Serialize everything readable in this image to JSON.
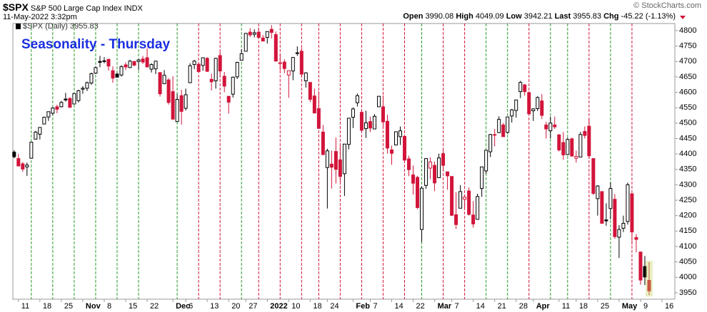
{
  "header": {
    "symbol": "$SPX",
    "name": "S&P 500 Large Cap Index",
    "exchange": "INDX",
    "datetime": "11-May-2022 3:32pm",
    "copyright": "© StockCharts.com",
    "quote": [
      {
        "label": "Open",
        "value": 3990.08
      },
      {
        "label": "High",
        "value": 4049.09
      },
      {
        "label": "Low",
        "value": 3942.21
      },
      {
        "label": "Last",
        "value": 3955.83
      },
      {
        "label": "Chg",
        "value": -45.22,
        "pct": "(-1.13%)"
      }
    ]
  },
  "chart_data": {
    "type": "candlestick",
    "title": "Seasonality - Thursday",
    "legend": "$SPX (Daily) 3955.83",
    "up_color": "#000000",
    "down_color": "#d2143a",
    "up_line_color": "#2a9a2a",
    "down_line_color": "#d2143a",
    "xlim": [
      -0.3,
      154
    ],
    "ylim": [
      3929,
      4823
    ],
    "yticks": [
      3950,
      4000,
      4050,
      4100,
      4150,
      4200,
      4250,
      4300,
      4350,
      4400,
      4450,
      4500,
      4550,
      4600,
      4650,
      4700,
      4750,
      4800
    ],
    "xticks": [
      {
        "value": 1,
        "label": "11"
      },
      {
        "value": 6,
        "label": "18"
      },
      {
        "value": 11,
        "label": "25"
      },
      {
        "value": 16,
        "label": "Nov"
      },
      {
        "value": 21,
        "label": "8"
      },
      {
        "value": 26,
        "label": "15"
      },
      {
        "value": 31,
        "label": "22"
      },
      {
        "value": 37,
        "label": "Dec"
      },
      {
        "value": 40,
        "label": "6"
      },
      {
        "value": 45,
        "label": "13"
      },
      {
        "value": 50,
        "label": "20"
      },
      {
        "value": 54,
        "label": "27"
      },
      {
        "value": 59,
        "label": "2022"
      },
      {
        "value": 64,
        "label": "10"
      },
      {
        "value": 69,
        "label": "18"
      },
      {
        "value": 73,
        "label": "24"
      },
      {
        "value": 79,
        "label": "Feb"
      },
      {
        "value": 83,
        "label": "7"
      },
      {
        "value": 88,
        "label": "14"
      },
      {
        "value": 93,
        "label": "22"
      },
      {
        "value": 98,
        "label": "Mar"
      },
      {
        "value": 102,
        "label": "7"
      },
      {
        "value": 107,
        "label": "14"
      },
      {
        "value": 112,
        "label": "21"
      },
      {
        "value": 117,
        "label": "28"
      },
      {
        "value": 121,
        "label": "Apr"
      },
      {
        "value": 127,
        "label": "11"
      },
      {
        "value": 131,
        "label": "18"
      },
      {
        "value": 136,
        "label": "25"
      },
      {
        "value": 141,
        "label": "May"
      },
      {
        "value": 146,
        "label": "9"
      },
      {
        "value": 151,
        "label": "16"
      }
    ],
    "thursdays": [
      4,
      9,
      14,
      19,
      24,
      29,
      38,
      43,
      48,
      53,
      57,
      62,
      67,
      71,
      76,
      81,
      86,
      91,
      95,
      100,
      105,
      110,
      115,
      120,
      125,
      129,
      134,
      139,
      144
    ],
    "open": [
      4406,
      4385,
      4368,
      4358,
      4386,
      4448,
      4464,
      4497,
      4520,
      4532,
      4553,
      4553,
      4578,
      4580,
      4562,
      4573,
      4610,
      4613,
      4630,
      4662,
      4700,
      4701,
      4707,
      4670,
      4659,
      4656,
      4689,
      4680,
      4700,
      4700,
      4708,
      4712,
      4675,
      4676,
      4664,
      4628,
      4640,
      4602,
      4505,
      4589,
      4548,
      4631,
      4690,
      4691,
      4687,
      4710,
      4642,
      4637,
      4719,
      4652,
      4587,
      4594,
      4650,
      4704,
      4733,
      4795,
      4788,
      4795,
      4776,
      4778,
      4804,
      4787,
      4693,
      4698,
      4656,
      4669,
      4728,
      4733,
      4637,
      4632,
      4588,
      4547,
      4471,
      4356,
      4367,
      4408,
      4381,
      4336,
      4431,
      4519,
      4566,
      4535,
      4482,
      4505,
      4481,
      4553,
      4553,
      4506,
      4413,
      4429,
      4456,
      4457,
      4384,
      4332,
      4324,
      4155,
      4298,
      4354,
      4363,
      4323,
      4401,
      4342,
      4327,
      4203,
      4224,
      4253,
      4280,
      4202,
      4188,
      4288,
      4345,
      4407,
      4463,
      4469,
      4494,
      4470,
      4523,
      4541,
      4602,
      4624,
      4599,
      4540,
      4547,
      4572,
      4494,
      4475,
      4494,
      4462,
      4437,
      4398,
      4449,
      4386,
      4390,
      4473,
      4490,
      4385,
      4255,
      4278,
      4186,
      4223,
      4253,
      4130,
      4159,
      4181,
      4271,
      4129,
      4082,
      4035,
      3990.08
    ],
    "high": [
      4412,
      4400,
      4374,
      4372,
      4439,
      4475,
      4487,
      4521,
      4537,
      4551,
      4560,
      4572,
      4598,
      4584,
      4597,
      4608,
      4620,
      4635,
      4664,
      4684,
      4718,
      4714,
      4708,
      4684,
      4664,
      4688,
      4697,
      4705,
      4701,
      4708,
      4718,
      4743,
      4694,
      4702,
      4664,
      4672,
      4646,
      4652,
      4595,
      4608,
      4612,
      4694,
      4705,
      4695,
      4713,
      4714,
      4660,
      4712,
      4731,
      4666,
      4587,
      4651,
      4699,
      4740,
      4791,
      4808,
      4804,
      4808,
      4786,
      4797,
      4818,
      4797,
      4725,
      4707,
      4670,
      4714,
      4749,
      4744,
      4665,
      4632,
      4612,
      4603,
      4494,
      4417,
      4411,
      4453,
      4428,
      4432,
      4516,
      4551,
      4596,
      4542,
      4540,
      4521,
      4529,
      4588,
      4590,
      4527,
      4427,
      4472,
      4489,
      4457,
      4394,
      4363,
      4329,
      4295,
      4385,
      4389,
      4375,
      4401,
      4416,
      4343,
      4328,
      4276,
      4299,
      4268,
      4291,
      4247,
      4271,
      4358,
      4412,
      4465,
      4481,
      4522,
      4501,
      4520,
      4546,
      4575,
      4637,
      4627,
      4603,
      4548,
      4587,
      4594,
      4504,
      4521,
      4521,
      4464,
      4471,
      4453,
      4453,
      4411,
      4471,
      4489,
      4513,
      4386,
      4299,
      4278,
      4240,
      4308,
      4270,
      4169,
      4200,
      4307,
      4271,
      4140,
      4082,
      4069,
      4049.09
    ],
    "low": [
      4386,
      4360,
      4342,
      4329,
      4386,
      4448,
      4447,
      4496,
      4507,
      4526,
      4532,
      4551,
      4570,
      4551,
      4562,
      4567,
      4595,
      4604,
      4624,
      4659,
      4681,
      4694,
      4670,
      4631,
      4648,
      4651,
      4672,
      4679,
      4684,
      4672,
      4692,
      4682,
      4664,
      4659,
      4586,
      4626,
      4560,
      4510,
      4504,
      4495,
      4541,
      4631,
      4675,
      4665,
      4670,
      4666,
      4606,
      4612,
      4651,
      4600,
      4531,
      4583,
      4643,
      4703,
      4733,
      4780,
      4778,
      4775,
      4766,
      4758,
      4774,
      4700,
      4671,
      4662,
      4582,
      4639,
      4718,
      4651,
      4615,
      4568,
      4531,
      4482,
      4396,
      4223,
      4288,
      4304,
      4309,
      4264,
      4415,
      4484,
      4554,
      4470,
      4452,
      4471,
      4481,
      4553,
      4481,
      4401,
      4365,
      4429,
      4429,
      4373,
      4328,
      4268,
      4221,
      4115,
      4287,
      4318,
      4279,
      4323,
      4345,
      4284,
      4199,
      4157,
      4224,
      4223,
      4200,
      4161,
      4187,
      4261,
      4335,
      4390,
      4425,
      4469,
      4456,
      4465,
      4502,
      4518,
      4581,
      4589,
      4530,
      4507,
      4539,
      4514,
      4450,
      4450,
      4481,
      4408,
      4381,
      4396,
      4392,
      4372,
      4390,
      4450,
      4385,
      4267,
      4200,
      4174,
      4167,
      4188,
      4125,
      4063,
      4147,
      4171,
      4106,
      4081,
      3976,
      3975,
      3942.21
    ],
    "close": [
      4391,
      4361,
      4351,
      4364,
      4438,
      4471,
      4486,
      4519,
      4537,
      4549,
      4545,
      4567,
      4575,
      4551,
      4596,
      4605,
      4613,
      4631,
      4660,
      4680,
      4697,
      4702,
      4685,
      4646,
      4649,
      4683,
      4682,
      4701,
      4688,
      4705,
      4698,
      4682,
      4690,
      4701,
      4595,
      4655,
      4567,
      4513,
      4577,
      4538,
      4592,
      4686,
      4701,
      4667,
      4712,
      4668,
      4634,
      4710,
      4669,
      4620,
      4568,
      4649,
      4697,
      4725,
      4791,
      4786,
      4793,
      4778,
      4766,
      4797,
      4794,
      4701,
      4696,
      4677,
      4670,
      4713,
      4726,
      4659,
      4663,
      4577,
      4533,
      4483,
      4398,
      4410,
      4357,
      4350,
      4327,
      4432,
      4516,
      4546,
      4589,
      4477,
      4501,
      4484,
      4522,
      4587,
      4504,
      4419,
      4402,
      4472,
      4475,
      4380,
      4349,
      4305,
      4226,
      4289,
      4385,
      4374,
      4306,
      4387,
      4363,
      4329,
      4201,
      4171,
      4278,
      4260,
      4204,
      4173,
      4262,
      4358,
      4412,
      4463,
      4461,
      4512,
      4456,
      4520,
      4543,
      4575,
      4632,
      4602,
      4530,
      4546,
      4583,
      4525,
      4481,
      4500,
      4488,
      4413,
      4397,
      4447,
      4393,
      4392,
      4463,
      4460,
      4394,
      4272,
      4296,
      4175,
      4183,
      4288,
      4132,
      4155,
      4175,
      4300,
      4147,
      4123,
      3991,
      4001,
      3955.83
    ]
  }
}
